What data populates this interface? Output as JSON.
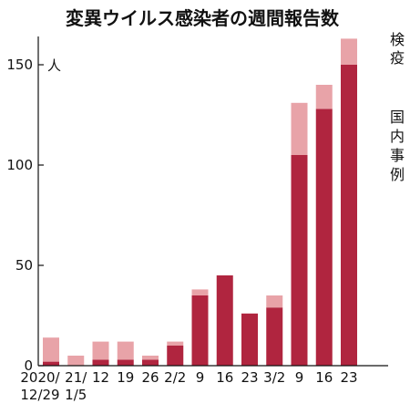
{
  "chart_data": {
    "type": "bar",
    "stacked": true,
    "title": "変異ウイルス感染者の週間報告数",
    "unit_label": "人",
    "categories": [
      [
        "2020/",
        "12/29"
      ],
      [
        "21/",
        "1/5"
      ],
      [
        "12",
        ""
      ],
      [
        "19",
        ""
      ],
      [
        "26",
        ""
      ],
      [
        "2/2",
        ""
      ],
      [
        "9",
        ""
      ],
      [
        "16",
        ""
      ],
      [
        "23",
        ""
      ],
      [
        "3/2",
        ""
      ],
      [
        "9",
        ""
      ],
      [
        "16",
        ""
      ],
      [
        "23",
        ""
      ]
    ],
    "series": [
      {
        "name": "国内事例",
        "color": "#b0253f",
        "values": [
          2,
          0,
          3,
          3,
          3,
          10,
          35,
          45,
          26,
          29,
          105,
          128,
          150
        ]
      },
      {
        "name": "検疫",
        "color": "#e8a3a8",
        "values": [
          12,
          5,
          9,
          9,
          2,
          2,
          3,
          0,
          0,
          6,
          26,
          12,
          13
        ]
      }
    ],
    "y_ticks": [
      "0",
      "50",
      "100",
      "150"
    ],
    "ylim": [
      0,
      165
    ],
    "grid": false,
    "legend_placement": "right"
  }
}
